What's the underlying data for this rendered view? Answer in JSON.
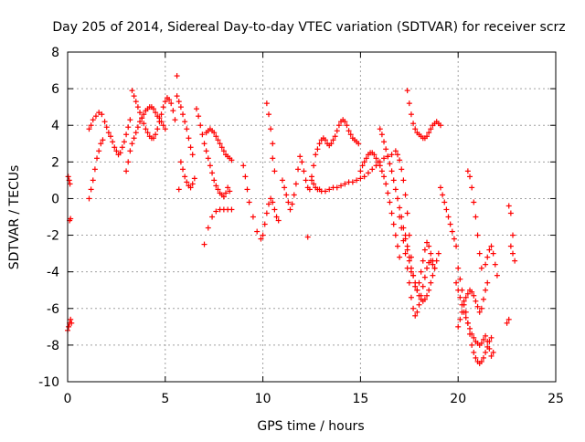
{
  "chart_data": {
    "type": "scatter",
    "title": "Day 205 of 2014, Sidereal Day-to-day VTEC variation (SDTVAR) for receiver scrz",
    "xlabel": "GPS time / hours",
    "ylabel": "SDTVAR / TECUs",
    "xlim": [
      0,
      25
    ],
    "ylim": [
      -10,
      8
    ],
    "xticks": [
      0,
      5,
      10,
      15,
      20,
      25
    ],
    "yticks": [
      -10,
      -8,
      -6,
      -4,
      -2,
      0,
      2,
      4,
      6,
      8
    ],
    "grid": true,
    "marker": "+",
    "marker_color": "#ff0000",
    "series": [
      {
        "name": "SDTVAR",
        "x": [
          0.0,
          0.05,
          0.1,
          0.15,
          0.2,
          0.03,
          0.08,
          0.12,
          0.1,
          0.15,
          1.1,
          1.2,
          1.3,
          1.4,
          1.5,
          1.6,
          1.7,
          1.8,
          1.1,
          1.2,
          1.3,
          1.45,
          1.6,
          1.75,
          1.9,
          2.0,
          2.1,
          2.2,
          2.3,
          2.4,
          2.5,
          2.6,
          2.7,
          2.8,
          2.9,
          3.0,
          3.1,
          3.2,
          3.0,
          3.1,
          3.2,
          3.3,
          3.4,
          3.5,
          3.6,
          3.7,
          3.8,
          3.9,
          4.0,
          4.1,
          4.2,
          4.3,
          4.4,
          4.5,
          4.6,
          4.7,
          4.8,
          4.9,
          5.0,
          3.3,
          3.4,
          3.5,
          3.6,
          3.7,
          3.8,
          3.9,
          4.0,
          4.1,
          4.2,
          4.3,
          4.4,
          4.5,
          4.6,
          4.7,
          4.8,
          4.9,
          5.0,
          5.1,
          5.2,
          5.3,
          5.4,
          5.5,
          5.6,
          5.7,
          5.8,
          5.9,
          6.0,
          6.1,
          6.2,
          6.3,
          6.4,
          5.8,
          5.9,
          6.0,
          6.1,
          6.2,
          6.3,
          6.4,
          6.5,
          5.7,
          5.6,
          6.6,
          6.7,
          6.8,
          6.9,
          7.0,
          7.1,
          7.2,
          7.3,
          7.4,
          7.5,
          7.6,
          7.7,
          7.8,
          7.9,
          8.0,
          8.1,
          8.2,
          8.3,
          7.1,
          7.2,
          7.3,
          7.4,
          7.5,
          7.6,
          7.7,
          7.8,
          7.9,
          8.0,
          8.1,
          8.2,
          8.3,
          8.4,
          7.0,
          7.2,
          7.4,
          7.6,
          7.8,
          8.0,
          8.2,
          8.4,
          9.0,
          9.1,
          9.2,
          9.3,
          9.5,
          9.7,
          9.9,
          10.0,
          10.1,
          10.2,
          10.3,
          10.4,
          10.5,
          10.6,
          10.7,
          10.8,
          10.2,
          10.3,
          10.4,
          10.5,
          10.5,
          10.6,
          11.0,
          11.1,
          11.2,
          11.3,
          11.4,
          11.5,
          11.6,
          11.7,
          11.8,
          11.9,
          12.0,
          12.1,
          12.2,
          12.3,
          12.3,
          12.4,
          12.5,
          12.6,
          12.7,
          12.8,
          12.9,
          13.0,
          13.1,
          13.2,
          13.3,
          13.4,
          13.5,
          13.6,
          13.7,
          13.8,
          13.9,
          14.0,
          14.1,
          14.2,
          14.3,
          14.4,
          14.5,
          14.6,
          14.7,
          14.8,
          14.9,
          12.5,
          12.6,
          12.7,
          12.8,
          12.9,
          13.0,
          13.2,
          13.4,
          13.6,
          13.8,
          14.0,
          14.2,
          14.4,
          14.6,
          14.8,
          15.0,
          15.2,
          15.4,
          15.6,
          15.8,
          16.0,
          16.2,
          16.4,
          16.6,
          15.0,
          15.1,
          15.2,
          15.3,
          15.4,
          15.5,
          15.6,
          15.7,
          15.8,
          15.9,
          16.0,
          16.1,
          16.2,
          16.3,
          16.4,
          16.5,
          16.6,
          16.7,
          16.8,
          16.9,
          17.0,
          16.0,
          16.1,
          16.2,
          16.3,
          16.4,
          16.5,
          16.6,
          16.7,
          16.8,
          16.9,
          17.0,
          17.1,
          17.2,
          17.3,
          17.4,
          17.5,
          17.6,
          16.8,
          16.9,
          17.0,
          17.1,
          17.2,
          17.3,
          17.4,
          17.5,
          17.6,
          17.7,
          17.8,
          17.9,
          18.0,
          18.1,
          18.2,
          18.3,
          18.4,
          18.5,
          18.6,
          18.7,
          18.8,
          17.0,
          17.1,
          17.2,
          17.3,
          17.4,
          17.5,
          17.6,
          17.7,
          17.8,
          17.9,
          18.0,
          18.1,
          18.2,
          18.3,
          18.4,
          18.5,
          18.6,
          18.7,
          17.3,
          17.4,
          17.5,
          17.6,
          17.7,
          17.8,
          17.9,
          18.0,
          18.1,
          18.2,
          18.3,
          18.4,
          18.5,
          18.6,
          18.7,
          18.8,
          18.9,
          19.0,
          17.4,
          17.5,
          17.6,
          17.7,
          17.8,
          17.9,
          18.0,
          18.1,
          18.2,
          18.3,
          18.4,
          18.5,
          18.6,
          18.7,
          18.8,
          18.9,
          19.0,
          19.1,
          19.1,
          19.2,
          19.3,
          19.4,
          19.5,
          19.6,
          19.7,
          19.8,
          19.9,
          20.0,
          20.1,
          20.2,
          20.3,
          20.4,
          20.5,
          20.6,
          20.7,
          20.8,
          20.9,
          21.0,
          21.1,
          21.2,
          21.3,
          21.4,
          21.5,
          21.6,
          21.7,
          21.8,
          19.9,
          20.0,
          20.1,
          20.2,
          20.3,
          20.4,
          20.5,
          20.6,
          20.7,
          20.8,
          20.9,
          21.0,
          21.1,
          21.2,
          21.3,
          21.4,
          21.5,
          21.6,
          21.7,
          20.0,
          20.1,
          20.2,
          20.3,
          20.4,
          20.5,
          20.6,
          20.7,
          20.8,
          20.9,
          21.0,
          21.1,
          21.2,
          21.3,
          21.4,
          21.5,
          20.5,
          20.6,
          20.7,
          20.8,
          20.9,
          21.0,
          21.1,
          21.2,
          21.4,
          21.5,
          21.6,
          21.7,
          21.8,
          21.9,
          22.0,
          22.5,
          22.6,
          22.7,
          22.8,
          22.9,
          22.6,
          22.7,
          22.8
        ],
        "y": [
          -7.2,
          -7.0,
          -6.8,
          -6.6,
          -6.8,
          1.2,
          1.0,
          0.8,
          -1.2,
          -1.1,
          0.0,
          0.5,
          1.0,
          1.6,
          2.2,
          2.6,
          3.0,
          3.2,
          3.8,
          4.0,
          4.3,
          4.5,
          4.7,
          4.6,
          4.2,
          3.9,
          3.6,
          3.4,
          3.1,
          2.8,
          2.6,
          2.4,
          2.5,
          2.8,
          3.1,
          3.5,
          3.9,
          4.3,
          1.5,
          2.0,
          2.6,
          3.0,
          3.3,
          3.6,
          3.9,
          4.2,
          4.4,
          4.6,
          4.8,
          4.9,
          5.0,
          5.0,
          4.9,
          4.7,
          4.5,
          4.4,
          4.2,
          4.0,
          3.8,
          5.9,
          5.6,
          5.3,
          5.0,
          4.7,
          4.4,
          4.1,
          3.8,
          3.6,
          3.4,
          3.3,
          3.3,
          3.5,
          3.8,
          4.2,
          4.6,
          5.0,
          5.3,
          5.5,
          5.4,
          5.2,
          4.8,
          4.3,
          5.6,
          5.3,
          5.0,
          4.6,
          4.2,
          3.8,
          3.3,
          2.8,
          2.4,
          2.0,
          1.6,
          1.2,
          0.9,
          0.7,
          0.6,
          0.8,
          1.1,
          0.5,
          6.7,
          4.9,
          4.5,
          4.0,
          3.5,
          3.0,
          2.6,
          2.2,
          1.8,
          1.4,
          1.0,
          0.7,
          0.5,
          0.3,
          0.2,
          0.1,
          0.3,
          0.6,
          0.4,
          3.6,
          3.7,
          3.8,
          3.7,
          3.6,
          3.4,
          3.2,
          3.0,
          2.8,
          2.6,
          2.4,
          2.3,
          2.2,
          2.1,
          -2.5,
          -1.6,
          -1.0,
          -0.7,
          -0.6,
          -0.6,
          -0.6,
          -0.6,
          1.8,
          1.2,
          0.5,
          -0.2,
          -1.0,
          -1.8,
          -2.2,
          -2.0,
          -1.4,
          -0.8,
          -0.3,
          0.0,
          -0.2,
          -0.6,
          -1.0,
          -1.2,
          5.2,
          4.6,
          3.8,
          3.0,
          2.2,
          1.5,
          1.0,
          0.6,
          0.2,
          -0.2,
          -0.6,
          -0.3,
          0.2,
          0.8,
          1.6,
          2.3,
          2.0,
          1.5,
          1.0,
          0.6,
          -2.1,
          0.5,
          1.2,
          1.8,
          2.4,
          2.7,
          3.0,
          3.2,
          3.3,
          3.2,
          3.0,
          2.9,
          3.0,
          3.2,
          3.4,
          3.7,
          4.0,
          4.2,
          4.3,
          4.2,
          4.0,
          3.7,
          3.5,
          3.3,
          3.2,
          3.1,
          3.0,
          1.0,
          0.8,
          0.6,
          0.5,
          0.5,
          0.4,
          0.4,
          0.5,
          0.6,
          0.6,
          0.7,
          0.8,
          0.9,
          0.9,
          1.0,
          1.1,
          1.2,
          1.4,
          1.6,
          1.8,
          2.0,
          2.2,
          2.3,
          2.4,
          1.5,
          1.8,
          2.0,
          2.2,
          2.4,
          2.5,
          2.5,
          2.4,
          2.2,
          2.0,
          1.8,
          1.5,
          1.2,
          0.8,
          0.3,
          -0.2,
          -0.8,
          -1.4,
          -2.0,
          -2.6,
          -3.2,
          3.8,
          3.5,
          3.1,
          2.7,
          2.3,
          1.9,
          1.5,
          1.0,
          0.5,
          0.0,
          -0.5,
          -1.0,
          -1.6,
          -2.2,
          -2.8,
          -3.4,
          -4.0,
          2.6,
          2.4,
          2.1,
          1.6,
          1.0,
          0.2,
          -0.8,
          -2.0,
          -3.2,
          -4.2,
          -4.8,
          -5.0,
          -4.6,
          -4.0,
          -3.4,
          -2.8,
          -2.4,
          -2.6,
          -3.0,
          -3.4,
          -3.8,
          -1.0,
          -1.6,
          -2.3,
          -3.0,
          -3.8,
          -4.6,
          -5.4,
          -6.0,
          -6.4,
          -6.2,
          -5.8,
          -5.3,
          -4.8,
          -4.3,
          -3.8,
          -3.5,
          -3.4,
          -3.6,
          -2.0,
          -2.6,
          -3.2,
          -3.8,
          -4.2,
          -4.6,
          -5.0,
          -5.3,
          -5.5,
          -5.6,
          -5.5,
          -5.3,
          -5.0,
          -4.6,
          -4.2,
          -3.8,
          -3.4,
          -3.0,
          5.9,
          5.2,
          4.6,
          4.1,
          3.8,
          3.6,
          3.5,
          3.4,
          3.3,
          3.3,
          3.4,
          3.6,
          3.8,
          4.0,
          4.1,
          4.2,
          4.1,
          4.0,
          0.6,
          0.2,
          -0.2,
          -0.6,
          -1.0,
          -1.4,
          -1.8,
          -2.2,
          -2.6,
          -3.8,
          -4.4,
          -5.0,
          -5.6,
          -6.2,
          -6.8,
          -7.4,
          -8.0,
          -8.4,
          -8.7,
          -8.9,
          -9.0,
          -8.9,
          -8.7,
          -8.4,
          -8.1,
          -7.8,
          -7.6,
          -8.4,
          -4.6,
          -5.0,
          -5.4,
          -5.8,
          -6.2,
          -6.5,
          -6.8,
          -7.1,
          -7.4,
          -7.6,
          -7.8,
          -7.9,
          -8.0,
          -7.9,
          -7.7,
          -7.5,
          -7.8,
          -8.2,
          -8.6,
          -7.0,
          -6.6,
          -6.2,
          -5.8,
          -5.4,
          -5.2,
          -5.0,
          -5.1,
          -5.3,
          -5.6,
          -5.9,
          -6.2,
          -6.0,
          -5.5,
          -5.0,
          -4.6,
          1.5,
          1.2,
          0.6,
          -0.2,
          -1.0,
          -2.0,
          -3.0,
          -3.8,
          -3.6,
          -3.2,
          -2.8,
          -2.6,
          -3.0,
          -3.6,
          -4.2,
          -6.8,
          -6.6,
          -0.8,
          -2.0,
          -3.4,
          -0.4,
          -2.6,
          -3.0
        ]
      }
    ]
  }
}
